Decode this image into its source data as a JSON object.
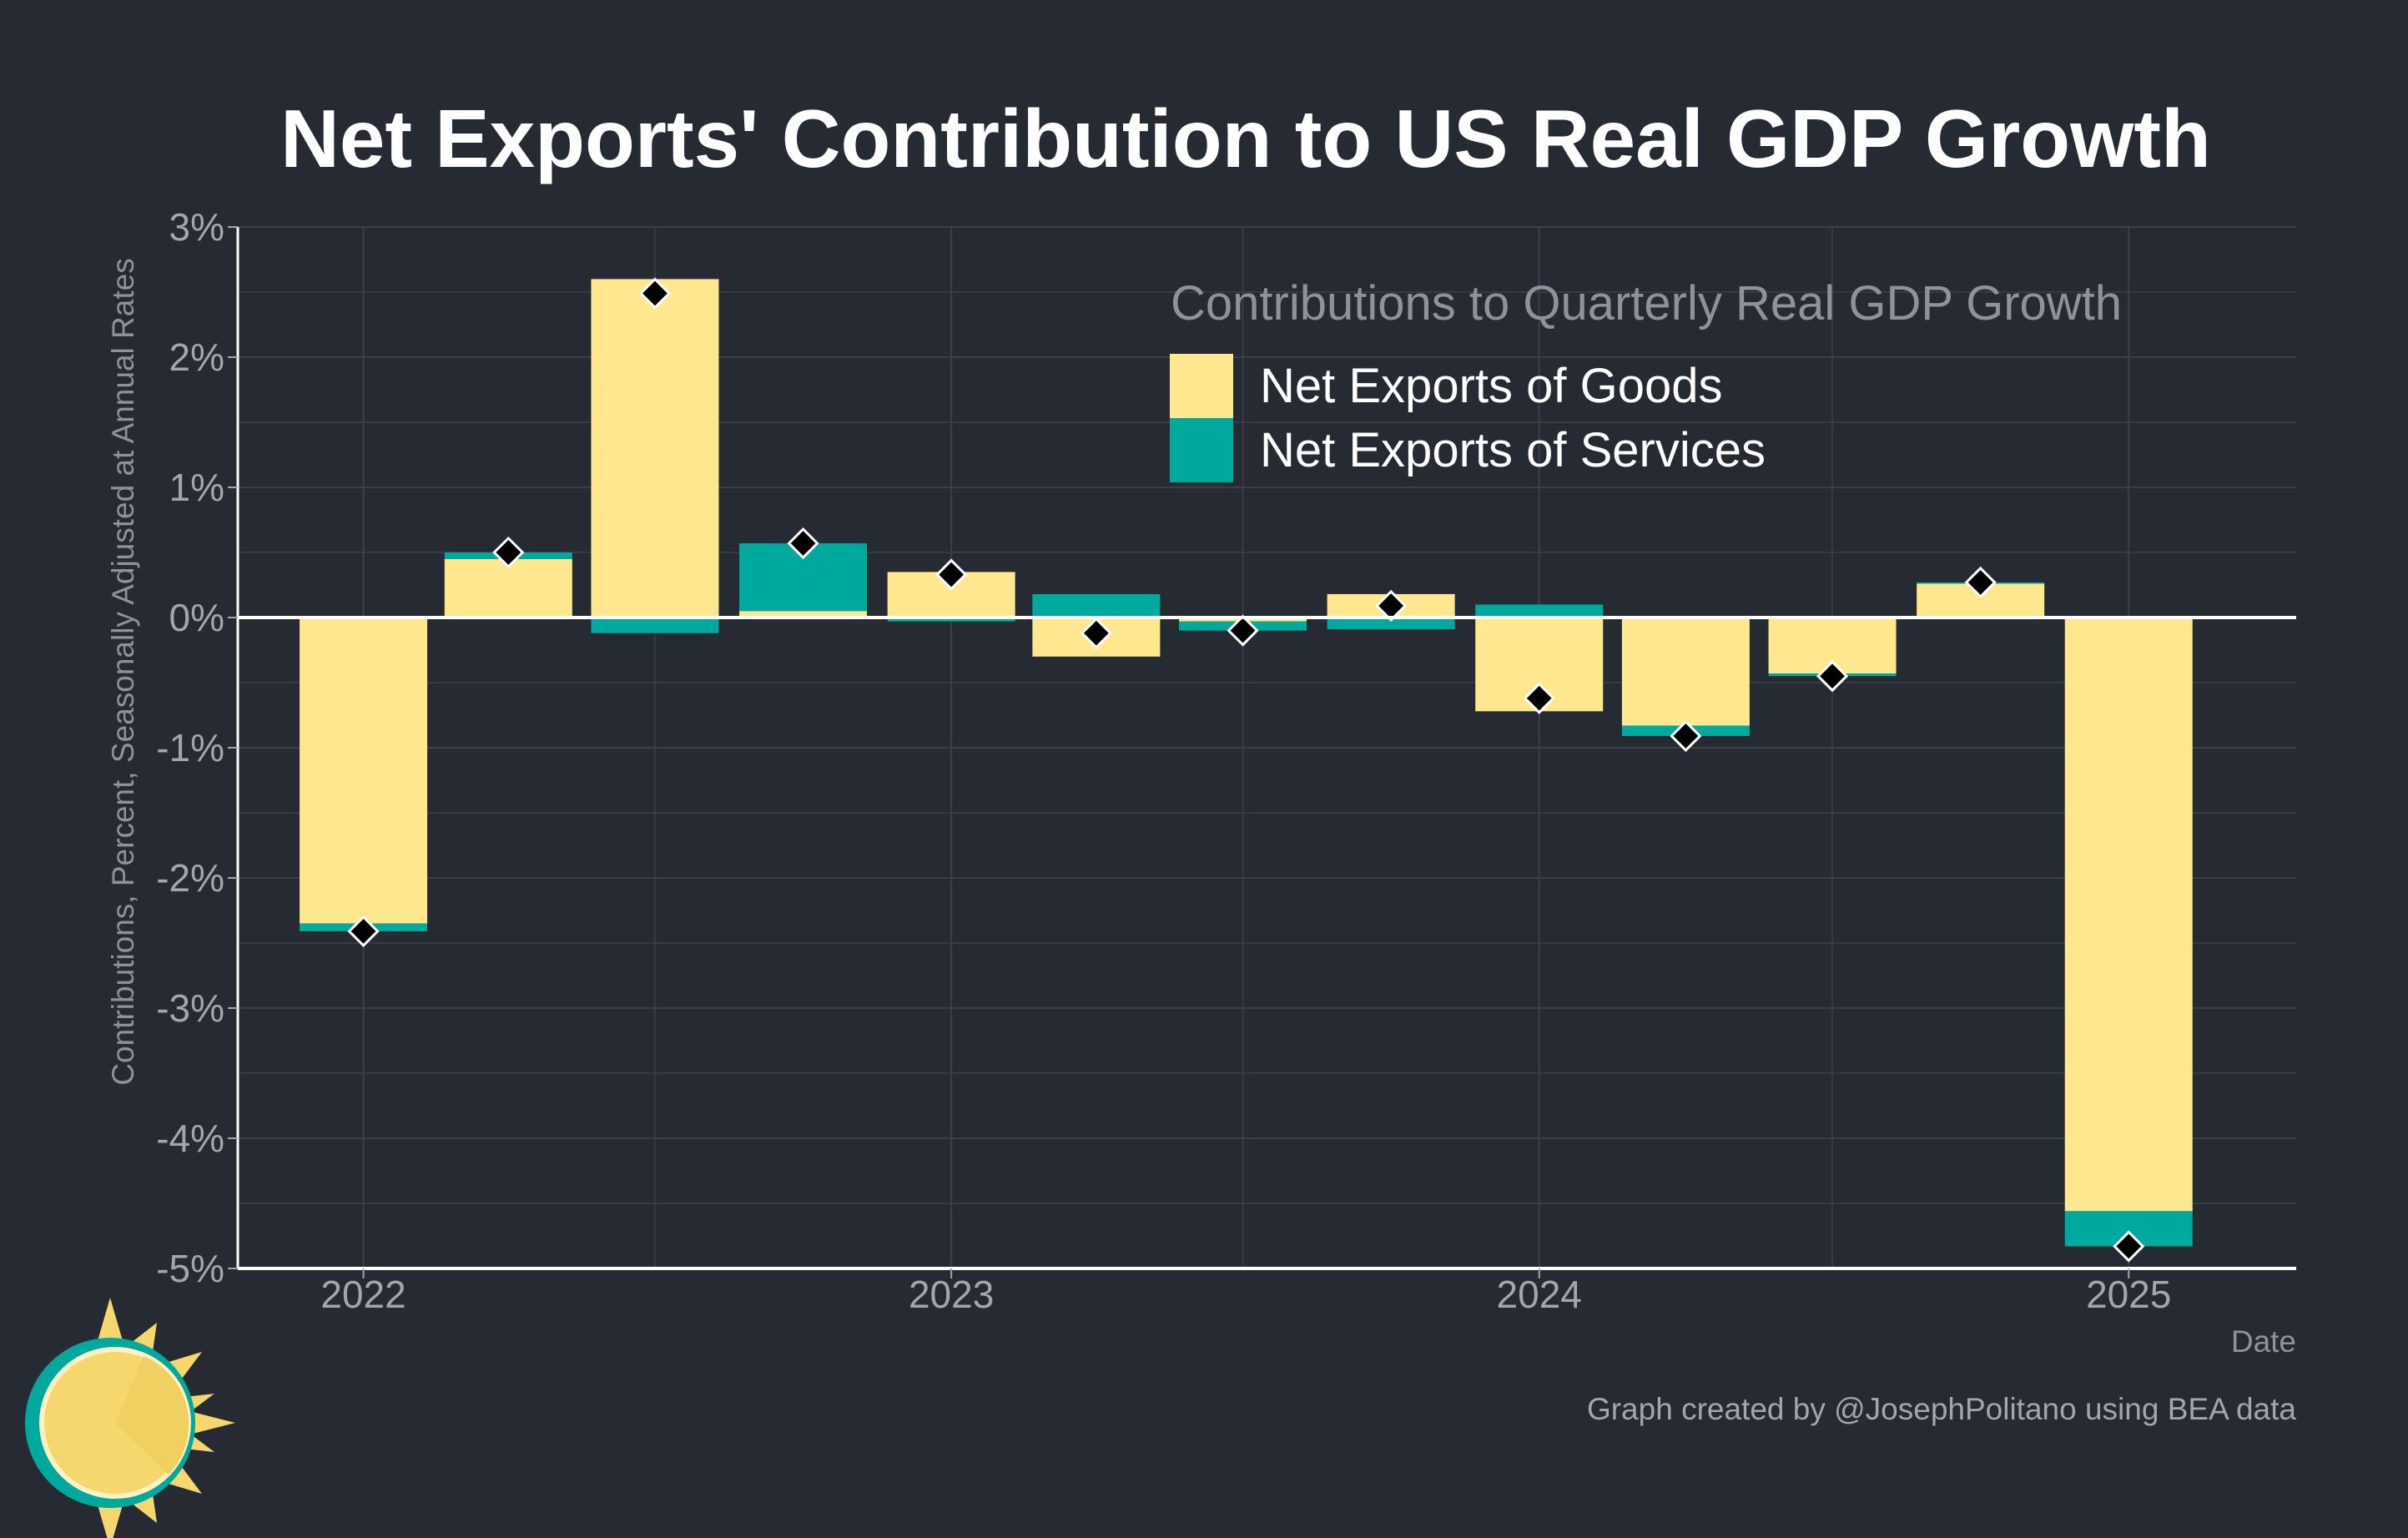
{
  "colors": {
    "background": "#252a33",
    "goods": "#ffe78f",
    "services": "#00a99d",
    "marker": "#000000",
    "grid": "#3b404a",
    "axis": "#ffffff",
    "logo_sun": "#f5d76e",
    "logo_ring": "#00a99d"
  },
  "chart_data": {
    "type": "bar",
    "stacked": true,
    "title": "Net Exports' Contribution to US Real GDP Growth",
    "ylabel": "Contributions, Percent, Seasonally Adjusted at Annual Rates",
    "xlabel": "Date",
    "ylim": [
      -5,
      3
    ],
    "y_ticks": [
      "-5%",
      "-4%",
      "-3%",
      "-2%",
      "-1%",
      "0%",
      "1%",
      "2%",
      "3%"
    ],
    "y_tick_values": [
      -5,
      -4,
      -3,
      -2,
      -1,
      0,
      1,
      2,
      3
    ],
    "x_tick_labels": [
      "2022",
      "2023",
      "2024",
      "2025"
    ],
    "x_tick_dates": [
      "2022-01-01",
      "2023-01-01",
      "2024-01-01",
      "2025-01-01"
    ],
    "categories": [
      "2022-01-01",
      "2022-04-01",
      "2022-07-01",
      "2022-10-01",
      "2023-01-01",
      "2023-04-01",
      "2023-07-01",
      "2023-10-01",
      "2024-01-01",
      "2024-04-01",
      "2024-07-01",
      "2024-10-01",
      "2025-01-01"
    ],
    "series": [
      {
        "name": "Net Exports of Goods",
        "values": [
          -2.35,
          0.45,
          2.6,
          0.05,
          0.35,
          -0.3,
          -0.03,
          0.18,
          -0.72,
          -0.83,
          -0.43,
          0.26,
          -4.56
        ]
      },
      {
        "name": "Net Exports of Services",
        "values": [
          -0.06,
          0.05,
          -0.12,
          0.52,
          -0.03,
          0.18,
          -0.07,
          -0.09,
          0.1,
          -0.08,
          -0.02,
          0.01,
          -0.27
        ]
      }
    ],
    "total": [
      -2.41,
      0.5,
      2.49,
      0.57,
      0.33,
      -0.12,
      -0.1,
      0.09,
      -0.62,
      -0.91,
      -0.45,
      0.27,
      -4.83
    ],
    "grid": true,
    "legend": {
      "title": "Contributions to Quarterly Real GDP Growth",
      "placement": "top-right"
    }
  },
  "credit": "Graph created by @JosephPolitano using BEA data",
  "logo": {
    "icon": "sun-logo-icon"
  }
}
